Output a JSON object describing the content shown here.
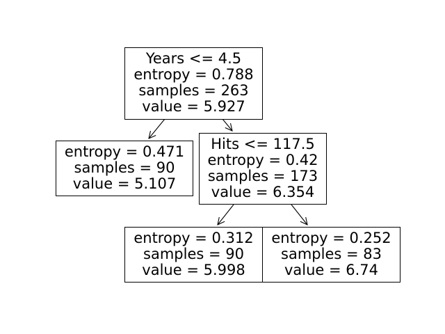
{
  "tree": {
    "nodes": [
      {
        "id": "root",
        "lines": [
          "Years <= 4.5",
          "entropy = 0.788",
          "samples = 263",
          "value = 5.927"
        ]
      },
      {
        "id": "left",
        "lines": [
          "entropy = 0.471",
          "samples = 90",
          "value = 5.107"
        ]
      },
      {
        "id": "right",
        "lines": [
          "Hits <= 117.5",
          "entropy = 0.42",
          "samples = 173",
          "value = 6.354"
        ]
      },
      {
        "id": "right-left",
        "lines": [
          "entropy = 0.312",
          "samples = 90",
          "value = 5.998"
        ]
      },
      {
        "id": "right-right",
        "lines": [
          "entropy = 0.252",
          "samples = 83",
          "value = 6.74"
        ]
      }
    ],
    "edges": [
      {
        "from": "root",
        "to": "left"
      },
      {
        "from": "root",
        "to": "right"
      },
      {
        "from": "right",
        "to": "right-left"
      },
      {
        "from": "right",
        "to": "right-right"
      }
    ]
  }
}
